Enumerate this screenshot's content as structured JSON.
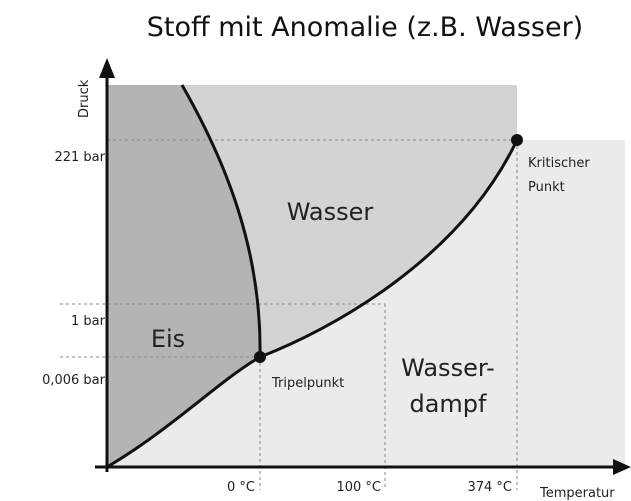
{
  "title": "Stoff mit Anomalie (z.B. Wasser)",
  "axes": {
    "y_label": "Druck",
    "x_label": "Temperatur"
  },
  "y_ticks": [
    "221 bar",
    "1 bar",
    "0,006 bar"
  ],
  "x_ticks": [
    "0 °C",
    "100 °C",
    "374 °C"
  ],
  "regions": {
    "water": "Wasser",
    "ice": "Eis",
    "vapor": [
      "Wasser-",
      "dampf"
    ]
  },
  "points": {
    "critical": [
      "Kritischer",
      "Punkt"
    ],
    "triple": "Tripelpunkt"
  }
}
